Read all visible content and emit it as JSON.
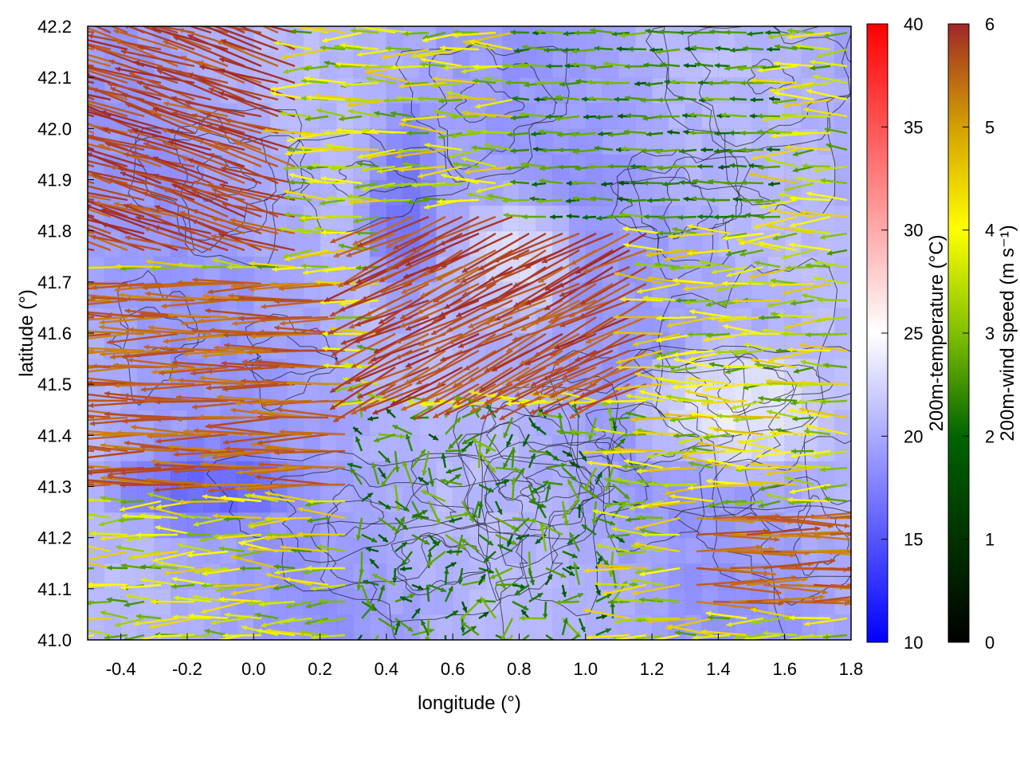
{
  "chart_data": {
    "type": "heatmap",
    "overlay": "wind vectors and topography contours",
    "xlabel": "longitude (°)",
    "ylabel": "latitude (°)",
    "xlim": [
      -0.5,
      1.8
    ],
    "ylim": [
      41.0,
      42.2
    ],
    "xticks": [
      -0.4,
      -0.2,
      0.0,
      0.2,
      0.4,
      0.6,
      0.8,
      1.0,
      1.2,
      1.4,
      1.6,
      1.8
    ],
    "xtick_labels": [
      "-0.4",
      "-0.2",
      "0.0",
      "0.2",
      "0.4",
      "0.6",
      "0.8",
      "1.0",
      "1.2",
      "1.4",
      "1.6",
      "1.8"
    ],
    "yticks": [
      41.0,
      41.1,
      41.2,
      41.3,
      41.4,
      41.5,
      41.6,
      41.7,
      41.8,
      41.9,
      42.0,
      42.1,
      42.2
    ],
    "ytick_labels": [
      "41.0",
      "41.1",
      "41.2",
      "41.3",
      "41.4",
      "41.5",
      "41.6",
      "41.7",
      "41.8",
      "41.9",
      "42.0",
      "42.1",
      "42.2"
    ],
    "grid": true,
    "colorbars": [
      {
        "label": "200m-temperature (°C)",
        "range": [
          10,
          40
        ],
        "ticks": [
          10,
          15,
          20,
          25,
          30,
          35,
          40
        ],
        "tick_labels": [
          "10",
          "15",
          "20",
          "25",
          "30",
          "35",
          "40"
        ],
        "colors": [
          "#0000ff",
          "#ffffff",
          "#ff0000"
        ]
      },
      {
        "label": "200m-wind speed (m s⁻¹)",
        "range": [
          0,
          6
        ],
        "ticks": [
          0,
          1,
          2,
          3,
          4,
          5,
          6
        ],
        "tick_labels": [
          "0",
          "1",
          "2",
          "3",
          "4",
          "5",
          "6"
        ],
        "colors": [
          "#000000",
          "#006400",
          "#80c000",
          "#ffff00",
          "#d4a000",
          "#c06020",
          "#a02828"
        ]
      }
    ],
    "wind_field_regions": [
      {
        "lon": [
          -0.5,
          0.15
        ],
        "lat": [
          41.75,
          42.2
        ],
        "speed": 6,
        "direction": "west-northwest"
      },
      {
        "lon": [
          -0.5,
          0.3
        ],
        "lat": [
          41.3,
          41.7
        ],
        "speed": 5.5,
        "direction": "west"
      },
      {
        "lon": [
          0.4,
          1.2
        ],
        "lat": [
          41.5,
          41.85
        ],
        "speed": 6,
        "direction": "southwest"
      },
      {
        "lon": [
          0.3,
          1.1
        ],
        "lat": [
          41.0,
          41.45
        ],
        "speed": 2,
        "direction": "variable"
      },
      {
        "lon": [
          1.3,
          1.8
        ],
        "lat": [
          41.05,
          41.25
        ],
        "speed": 5.5,
        "direction": "east"
      },
      {
        "lon": [
          0.8,
          1.6
        ],
        "lat": [
          41.8,
          42.2
        ],
        "speed": 2,
        "direction": "west"
      }
    ],
    "temperature_regions": [
      {
        "lon": [
          -0.5,
          0.2
        ],
        "lat": [
          41.2,
          41.4
        ],
        "temp": 15
      },
      {
        "lon": [
          0.3,
          0.6
        ],
        "lat": [
          41.6,
          42.1
        ],
        "temp": 16
      },
      {
        "lon": [
          1.1,
          1.8
        ],
        "lat": [
          41.3,
          41.6
        ],
        "temp": 24
      },
      {
        "lon": [
          0.6,
          1.0
        ],
        "lat": [
          41.6,
          41.9
        ],
        "temp": 23
      }
    ]
  }
}
